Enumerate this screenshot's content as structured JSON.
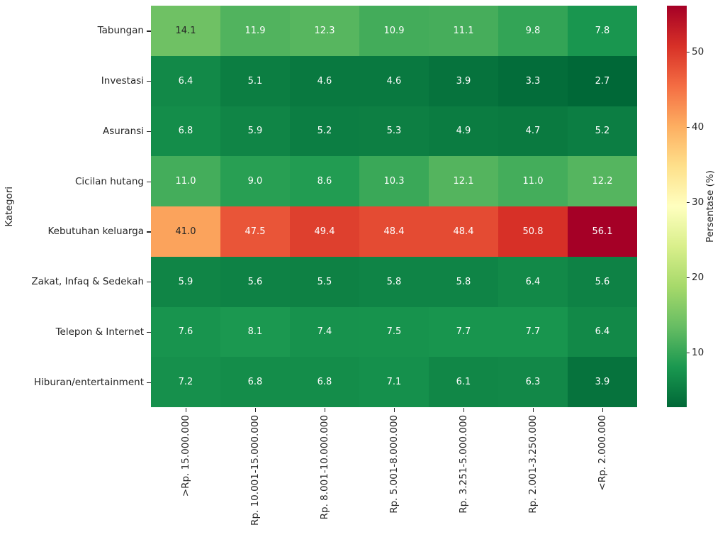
{
  "chart_data": {
    "type": "heatmap",
    "title": "",
    "xlabel": "",
    "ylabel": "Kategori",
    "colorbar_label": "Persentase (%)",
    "rows": [
      "Tabungan",
      "Investasi",
      "Asuransi",
      "Cicilan hutang",
      "Kebutuhan keluarga",
      "Zakat, Infaq & Sedekah",
      "Telepon & Internet",
      "Hiburan/entertainment"
    ],
    "columns": [
      ">Rp. 15.000.000",
      "Rp. 10.001-15.000.000",
      "Rp. 8.001-10.000.000",
      "Rp. 5.001-8.000.000",
      "Rp. 3.251-5.000.000",
      "Rp. 2.001-3.250.000",
      "<Rp. 2.000.000"
    ],
    "values": [
      [
        14.1,
        11.9,
        12.3,
        10.9,
        11.1,
        9.8,
        7.8
      ],
      [
        6.4,
        5.1,
        4.6,
        4.6,
        3.9,
        3.3,
        2.7
      ],
      [
        6.8,
        5.9,
        5.2,
        5.3,
        4.9,
        4.7,
        5.2
      ],
      [
        11.0,
        9.0,
        8.6,
        10.3,
        12.1,
        11.0,
        12.2
      ],
      [
        41.0,
        47.5,
        49.4,
        48.4,
        48.4,
        50.8,
        56.1
      ],
      [
        5.9,
        5.6,
        5.5,
        5.8,
        5.8,
        6.4,
        5.6
      ],
      [
        7.6,
        8.1,
        7.4,
        7.5,
        7.7,
        7.7,
        6.4
      ],
      [
        7.2,
        6.8,
        6.8,
        7.1,
        6.1,
        6.3,
        3.9
      ]
    ],
    "value_decimals": 1,
    "vmin": 2.7,
    "vmax": 56.1,
    "colorbar_ticks": [
      10,
      20,
      30,
      40,
      50
    ],
    "colormap": "RdYlGn_r",
    "colormap_stops_low_to_high": [
      "#006837",
      "#1a9850",
      "#66bd63",
      "#a6d96a",
      "#d9ef8b",
      "#ffffbf",
      "#fee08b",
      "#fdae61",
      "#f46d43",
      "#d73027",
      "#a50026"
    ],
    "annotation_dark_text_color": "#262626",
    "annotation_light_text_color": "#ffffff",
    "grid": false,
    "legend_position": "colorbar-right"
  }
}
